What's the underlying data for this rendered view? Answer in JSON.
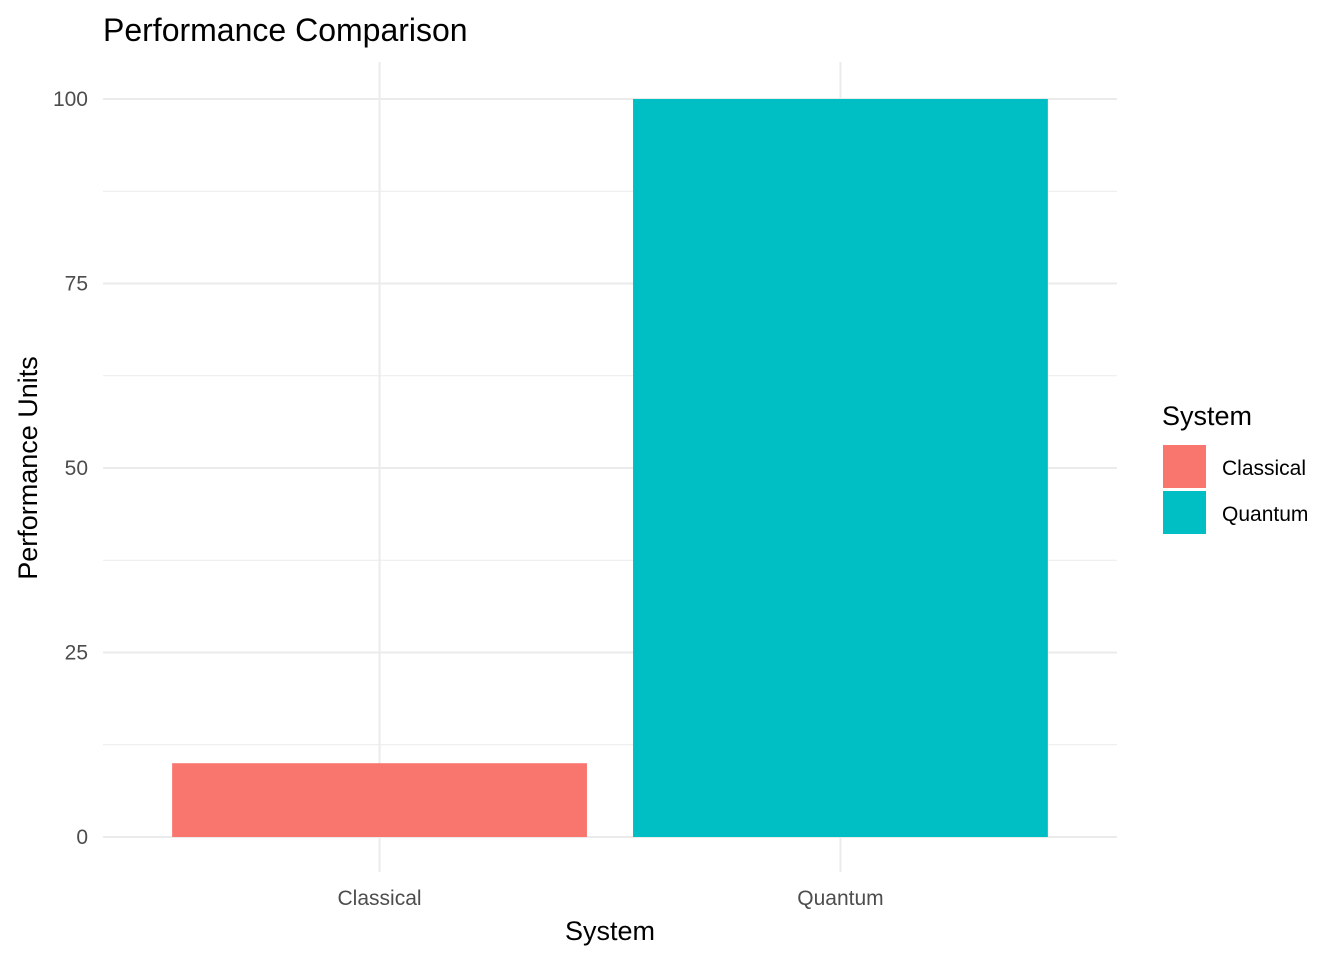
{
  "chart_data": {
    "type": "bar",
    "title": "Performance Comparison",
    "xlabel": "System",
    "ylabel": "Performance Units",
    "categories": [
      "Classical",
      "Quantum"
    ],
    "values": [
      10,
      100
    ],
    "colors": [
      "#F8766D",
      "#00BFC4"
    ],
    "ylim": [
      0,
      100
    ],
    "yticks": [
      "0",
      "25",
      "50",
      "75",
      "100"
    ],
    "grid": true,
    "legend": {
      "title": "System",
      "placement": "right",
      "entries": [
        "Classical",
        "Quantum"
      ]
    }
  }
}
